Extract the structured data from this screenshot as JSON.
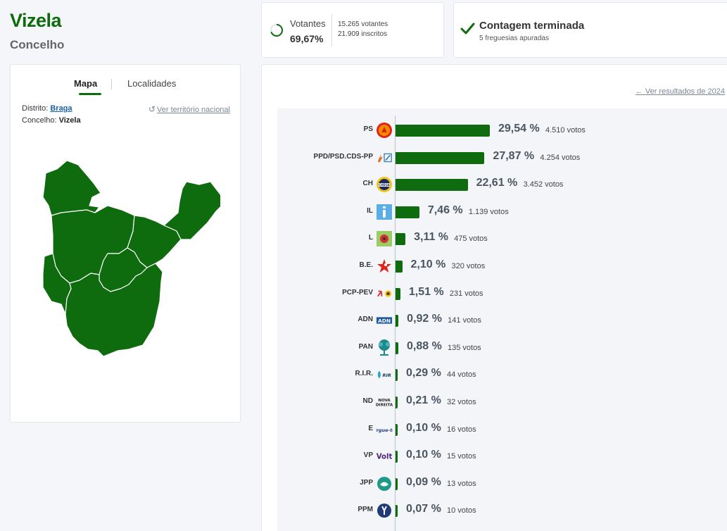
{
  "header": {
    "title": "Vizela",
    "subtitle": "Concelho"
  },
  "map_card": {
    "tab_map": "Mapa",
    "tab_localities": "Localidades",
    "district_label": "Distrito:",
    "district_value": "Braga",
    "council_label": "Concelho:",
    "council_value": "Vizela",
    "national_link": "Ver território nacional"
  },
  "turnout": {
    "label": "Votantes",
    "percent": "69,67%",
    "voters": "15.265 votantes",
    "registered": "21.909 inscritos",
    "fraction": 0.6967
  },
  "count": {
    "title": "Contagem terminada",
    "subtitle": "5 freguesias apuradas"
  },
  "results": {
    "previous_link": "Ver resultados de 2024",
    "accent_color": "#0e6b0e"
  },
  "chart_data": {
    "type": "bar",
    "categories": [
      "PS",
      "PPD/PSD.CDS-PP",
      "CH",
      "IL",
      "L",
      "B.E.",
      "PCP-PEV",
      "ADN",
      "PAN",
      "R.I.R.",
      "ND",
      "E",
      "VP",
      "JPP",
      "PPM"
    ],
    "values": [
      29.54,
      27.87,
      22.61,
      7.46,
      3.11,
      2.1,
      1.51,
      0.92,
      0.88,
      0.29,
      0.21,
      0.1,
      0.1,
      0.09,
      0.07
    ],
    "percent_labels": [
      "29,54 %",
      "27,87 %",
      "22,61 %",
      "7,46 %",
      "3,11 %",
      "2,10 %",
      "1,51 %",
      "0,92 %",
      "0,88 %",
      "0,29 %",
      "0,21 %",
      "0,10 %",
      "0,10 %",
      "0,09 %",
      "0,07 %"
    ],
    "vote_labels": [
      "4.510 votos",
      "4.254 votos",
      "3.452 votos",
      "1.139 votos",
      "475 votos",
      "320 votos",
      "231 votos",
      "141 votos",
      "135 votos",
      "44 votos",
      "32 votos",
      "16 votos",
      "15 votos",
      "13 votos",
      "10 votos"
    ],
    "logo_icons": [
      "ps-logo-icon",
      "psd-cds-logo-icon",
      "chega-logo-icon",
      "il-logo-icon",
      "livre-logo-icon",
      "be-logo-icon",
      "pcp-pev-logo-icon",
      "adn-logo-icon",
      "pan-logo-icon",
      "rir-logo-icon",
      "nd-logo-icon",
      "e-logo-icon",
      "volt-logo-icon",
      "jpp-logo-icon",
      "ppm-logo-icon"
    ],
    "xlim": [
      0,
      30
    ]
  }
}
